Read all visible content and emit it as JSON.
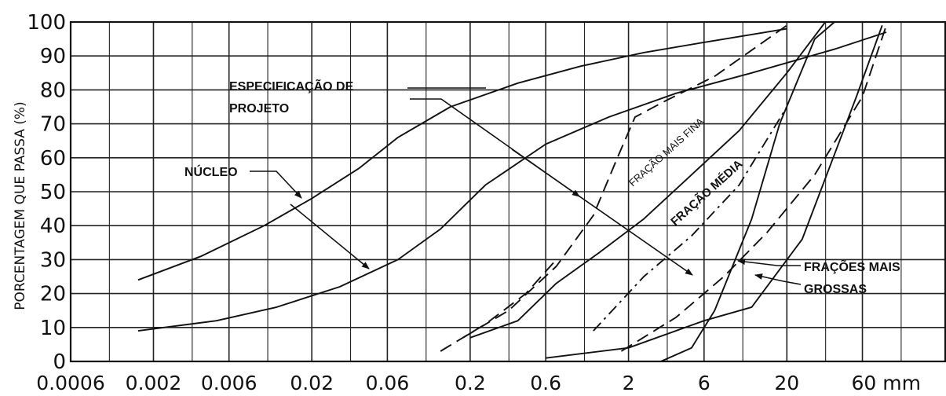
{
  "chart_data": {
    "type": "line",
    "ylabel": "PORCENTAGEM QUE PASSA (%)",
    "ylim": [
      0,
      100
    ],
    "yticks": [
      0,
      10,
      20,
      30,
      40,
      50,
      60,
      70,
      80,
      90,
      100
    ],
    "xscale": "log",
    "xtick_values": [
      0.0006,
      0.002,
      0.006,
      0.02,
      0.06,
      0.2,
      0.6,
      2,
      6,
      20,
      60
    ],
    "xtick_labels": [
      "0.0006",
      "0.002",
      "0.006",
      "0.02",
      "0.06",
      "0.2",
      "0.6",
      "2",
      "6",
      "20",
      "60 mm"
    ],
    "grid": true,
    "series": [
      {
        "style": "solid",
        "x": [
          0.0016,
          0.004,
          0.01,
          0.02,
          0.04,
          0.07,
          0.15,
          0.4,
          1,
          2.5,
          6,
          20
        ],
        "y": [
          24,
          31,
          40,
          48,
          57,
          66,
          75,
          82,
          87,
          91,
          94,
          98
        ]
      },
      {
        "style": "solid",
        "x": [
          0.0016,
          0.005,
          0.012,
          0.03,
          0.07,
          0.13,
          0.25,
          0.6,
          1.5,
          4,
          12,
          40,
          85
        ],
        "y": [
          9,
          12,
          16,
          22,
          30,
          39,
          52,
          64,
          72,
          79,
          85,
          92,
          97
        ]
      },
      {
        "style": "dashed",
        "x": [
          0.18,
          0.35,
          0.7,
          1.2,
          1.7,
          2.2,
          3.5,
          7,
          20
        ],
        "y": [
          7,
          15,
          28,
          43,
          60,
          72,
          77,
          84,
          99
        ]
      },
      {
        "style": "solid",
        "x": [
          0.2,
          0.4,
          0.7,
          1.3,
          2.5,
          5,
          10,
          20,
          35
        ],
        "y": [
          7,
          12,
          23,
          32,
          42,
          55,
          68,
          85,
          100
        ]
      },
      {
        "style": "dashed",
        "x": [
          0.13,
          0.25,
          0.45,
          0.7
        ],
        "y": [
          3,
          11,
          20,
          30
        ]
      },
      {
        "style": "dashdot",
        "x": [
          1.2,
          2.5,
          5,
          10,
          20
        ],
        "y": [
          9,
          25,
          37,
          52,
          75
        ]
      },
      {
        "style": "dashed",
        "x": [
          1.8,
          4,
          8,
          15,
          30,
          60,
          85
        ],
        "y": [
          3,
          13,
          25,
          38,
          55,
          78,
          99
        ]
      },
      {
        "style": "solid",
        "x": [
          0.6,
          2,
          6,
          12,
          25,
          55,
          80
        ],
        "y": [
          1,
          4,
          12,
          16,
          36,
          78,
          99
        ]
      },
      {
        "style": "solid",
        "x": [
          3.2,
          5,
          7,
          12,
          18,
          30,
          40
        ],
        "y": [
          0,
          4,
          15,
          42,
          70,
          95,
          100
        ]
      }
    ],
    "annotations": [
      {
        "text": "ESPECIFICAÇÃO DE"
      },
      {
        "text": "PROJETO"
      },
      {
        "text": "NÚCLEO"
      },
      {
        "text": "FRAÇÃO MAIS FINA"
      },
      {
        "text": "FRAÇÃO MÉDIA"
      },
      {
        "text": "FRAÇÕES MAIS"
      },
      {
        "text": "GROSSAS"
      }
    ]
  }
}
